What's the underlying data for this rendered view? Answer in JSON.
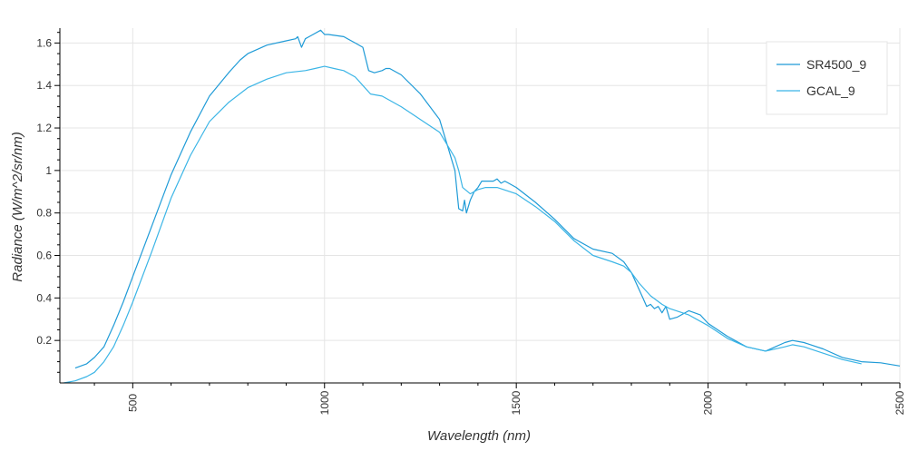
{
  "chart_data": {
    "type": "line",
    "xlabel": "Wavelength (nm)",
    "ylabel": "Radiance (W/m^2/sr/nm)",
    "xlim": [
      310,
      2500
    ],
    "ylim": [
      0,
      1.67
    ],
    "x_ticks": [
      500,
      1000,
      1500,
      2000,
      2500
    ],
    "x_tick_labels": [
      "500",
      "1000",
      "1500",
      "2000",
      "2500"
    ],
    "y_ticks": [
      0.2,
      0.4,
      0.6,
      0.8,
      1.0,
      1.2,
      1.4,
      1.6
    ],
    "y_tick_labels": [
      "0.2",
      "0.4",
      "0.6",
      "0.8",
      "1",
      "1.2",
      "1.4",
      "1.6"
    ],
    "grid": true,
    "legend_position": "top-right",
    "series": [
      {
        "name": "SR4500_9",
        "color": "#1f9bd7",
        "x": [
          350,
          380,
          400,
          425,
          450,
          475,
          500,
          550,
          600,
          650,
          700,
          750,
          780,
          800,
          850,
          900,
          925,
          930,
          940,
          950,
          960,
          970,
          990,
          1000,
          1010,
          1050,
          1080,
          1100,
          1115,
          1130,
          1150,
          1160,
          1170,
          1200,
          1250,
          1300,
          1320,
          1340,
          1350,
          1360,
          1365,
          1370,
          1375,
          1380,
          1385,
          1390,
          1400,
          1410,
          1420,
          1430,
          1440,
          1450,
          1460,
          1470,
          1480,
          1500,
          1550,
          1600,
          1650,
          1700,
          1750,
          1780,
          1800,
          1820,
          1830,
          1840,
          1850,
          1860,
          1870,
          1880,
          1890,
          1900,
          1920,
          1950,
          1980,
          2000,
          2050,
          2100,
          2150,
          2200,
          2220,
          2250,
          2300,
          2350,
          2400,
          2450,
          2500
        ],
        "y": [
          0.07,
          0.09,
          0.12,
          0.17,
          0.27,
          0.38,
          0.5,
          0.74,
          0.98,
          1.18,
          1.35,
          1.46,
          1.52,
          1.55,
          1.59,
          1.61,
          1.62,
          1.63,
          1.58,
          1.62,
          1.63,
          1.64,
          1.66,
          1.64,
          1.64,
          1.63,
          1.6,
          1.58,
          1.47,
          1.46,
          1.47,
          1.48,
          1.48,
          1.45,
          1.36,
          1.24,
          1.12,
          1.0,
          0.82,
          0.81,
          0.86,
          0.8,
          0.83,
          0.86,
          0.88,
          0.9,
          0.92,
          0.95,
          0.95,
          0.95,
          0.95,
          0.96,
          0.94,
          0.95,
          0.94,
          0.92,
          0.85,
          0.77,
          0.68,
          0.63,
          0.61,
          0.57,
          0.52,
          0.44,
          0.4,
          0.36,
          0.37,
          0.35,
          0.36,
          0.33,
          0.36,
          0.3,
          0.31,
          0.34,
          0.32,
          0.28,
          0.22,
          0.17,
          0.15,
          0.19,
          0.2,
          0.19,
          0.16,
          0.12,
          0.1,
          0.095,
          0.08
        ]
      },
      {
        "name": "GCAL_9",
        "color": "#3bb5e6",
        "x": [
          320,
          350,
          380,
          400,
          425,
          450,
          475,
          500,
          550,
          600,
          650,
          700,
          750,
          800,
          850,
          900,
          950,
          975,
          1000,
          1025,
          1050,
          1080,
          1100,
          1120,
          1150,
          1200,
          1250,
          1300,
          1320,
          1340,
          1350,
          1360,
          1380,
          1400,
          1420,
          1450,
          1500,
          1550,
          1600,
          1650,
          1700,
          1750,
          1780,
          1800,
          1820,
          1850,
          1880,
          1900,
          1950,
          2000,
          2050,
          2100,
          2150,
          2200,
          2220,
          2250,
          2300,
          2350,
          2400
        ],
        "y": [
          0.0,
          0.01,
          0.03,
          0.05,
          0.1,
          0.17,
          0.27,
          0.38,
          0.62,
          0.87,
          1.07,
          1.23,
          1.32,
          1.39,
          1.43,
          1.46,
          1.47,
          1.48,
          1.49,
          1.48,
          1.47,
          1.44,
          1.4,
          1.36,
          1.35,
          1.3,
          1.24,
          1.18,
          1.12,
          1.06,
          1.0,
          0.92,
          0.89,
          0.91,
          0.92,
          0.92,
          0.89,
          0.83,
          0.76,
          0.67,
          0.6,
          0.57,
          0.55,
          0.52,
          0.47,
          0.41,
          0.37,
          0.35,
          0.32,
          0.27,
          0.21,
          0.17,
          0.15,
          0.17,
          0.18,
          0.17,
          0.14,
          0.11,
          0.09
        ]
      }
    ]
  }
}
